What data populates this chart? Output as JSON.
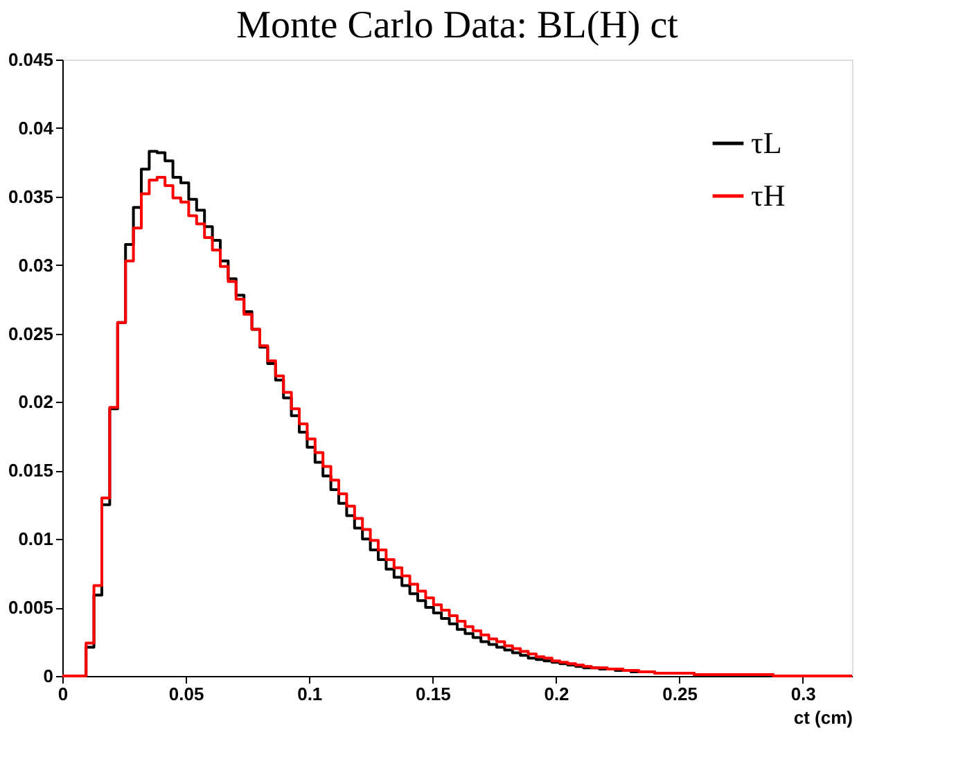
{
  "chart_data": {
    "type": "histogram",
    "title": "Monte Carlo Data: BL(H) ct",
    "xlabel": "ct (cm)",
    "bins": [
      0,
      0.0032,
      0.0064,
      0.0096,
      0.0128,
      0.016,
      0.0192,
      0.0224,
      0.0256,
      0.0288,
      0.032,
      0.0352,
      0.0384,
      0.0416,
      0.0448,
      0.048,
      0.0512,
      0.0544,
      0.0576,
      0.0608,
      0.064,
      0.0672,
      0.0704,
      0.0736,
      0.0768,
      0.08,
      0.0832,
      0.0864,
      0.0896,
      0.0928,
      0.096,
      0.0992,
      0.1024,
      0.1056,
      0.1088,
      0.112,
      0.1152,
      0.1184,
      0.1216,
      0.1248,
      0.128,
      0.1312,
      0.1344,
      0.1376,
      0.1408,
      0.144,
      0.1472,
      0.1504,
      0.1536,
      0.1568,
      0.16,
      0.1632,
      0.1664,
      0.1696,
      0.1728,
      0.176,
      0.1792,
      0.1824,
      0.1856,
      0.1888,
      0.192,
      0.1952,
      0.1984,
      0.2016,
      0.2048,
      0.208,
      0.2112,
      0.2144,
      0.2176,
      0.2208,
      0.224,
      0.2272,
      0.2304,
      0.2336,
      0.2368,
      0.24,
      0.2432,
      0.2464,
      0.2496,
      0.2528,
      0.256,
      0.2592,
      0.2624,
      0.2656,
      0.2688,
      0.272,
      0.2752,
      0.2784,
      0.2816,
      0.2848,
      0.288,
      0.2912,
      0.2944,
      0.2976,
      0.3008,
      0.304,
      0.3072,
      0.3104,
      0.3136,
      0.3168,
      0.32
    ],
    "series": [
      {
        "name": "τL",
        "color": "#000000",
        "values": [
          0,
          0,
          0,
          0.0021,
          0.0059,
          0.0125,
          0.0195,
          0.0258,
          0.0315,
          0.0342,
          0.037,
          0.0383,
          0.0382,
          0.0376,
          0.0364,
          0.036,
          0.0348,
          0.034,
          0.0328,
          0.0318,
          0.0303,
          0.029,
          0.0278,
          0.0266,
          0.0253,
          0.024,
          0.0228,
          0.0216,
          0.0203,
          0.019,
          0.0178,
          0.0167,
          0.0156,
          0.0146,
          0.0136,
          0.0126,
          0.0117,
          0.0108,
          0.01,
          0.0092,
          0.0085,
          0.0078,
          0.0072,
          0.0066,
          0.006,
          0.0055,
          0.005,
          0.0046,
          0.0042,
          0.0038,
          0.0034,
          0.0031,
          0.0028,
          0.0025,
          0.0023,
          0.0021,
          0.0019,
          0.0017,
          0.0015,
          0.0013,
          0.0012,
          0.0011,
          0.001,
          0.0009,
          0.0008,
          0.0007,
          0.0006,
          0.0006,
          0.0005,
          0.0005,
          0.0004,
          0.0004,
          0.0003,
          0.0003,
          0.0003,
          0.0002,
          0.0002,
          0.0002,
          0.0002,
          0.0002,
          0.0001,
          0.0001,
          0.0001,
          0.0001,
          0.0001,
          0.0001,
          0.0001,
          0.0001,
          0.0001,
          0.0001,
          0,
          0,
          0,
          0,
          0,
          0,
          0,
          0,
          0,
          0
        ]
      },
      {
        "name": "τH",
        "color": "#ff0000",
        "values": [
          0,
          0,
          0,
          0.0024,
          0.0066,
          0.013,
          0.0196,
          0.0258,
          0.0303,
          0.0327,
          0.0352,
          0.0362,
          0.0364,
          0.0358,
          0.0349,
          0.0346,
          0.0336,
          0.033,
          0.032,
          0.0311,
          0.0299,
          0.0288,
          0.0275,
          0.0264,
          0.0253,
          0.0241,
          0.023,
          0.0219,
          0.0207,
          0.0195,
          0.0184,
          0.0173,
          0.0163,
          0.0153,
          0.0143,
          0.0133,
          0.0124,
          0.0115,
          0.0107,
          0.0099,
          0.0092,
          0.0085,
          0.0079,
          0.0073,
          0.0067,
          0.0062,
          0.0057,
          0.0052,
          0.0048,
          0.0044,
          0.004,
          0.0036,
          0.0033,
          0.003,
          0.0027,
          0.0025,
          0.0022,
          0.002,
          0.0018,
          0.0016,
          0.0014,
          0.0013,
          0.0011,
          0.001,
          0.0009,
          0.0008,
          0.0007,
          0.0006,
          0.0006,
          0.0005,
          0.0005,
          0.0004,
          0.0004,
          0.0003,
          0.0003,
          0.0002,
          0.0002,
          0.0002,
          0.0002,
          0.0002,
          0.0001,
          0.0001,
          0.0001,
          0.0001,
          0.0001,
          0.0001,
          0.0001,
          0.0001,
          0.0001,
          0.0001,
          0,
          0,
          0,
          0,
          0,
          0,
          0,
          0,
          0,
          0
        ]
      }
    ],
    "xlim": [
      0,
      0.32
    ],
    "xticks": [
      0,
      0.05,
      0.1,
      0.15,
      0.2,
      0.25,
      0.3
    ],
    "ylim": [
      0,
      0.045
    ],
    "yticks": [
      0,
      0.005,
      0.01,
      0.015,
      0.02,
      0.025,
      0.03,
      0.035,
      0.04,
      0.045
    ],
    "grid": false,
    "legend": "top right"
  }
}
